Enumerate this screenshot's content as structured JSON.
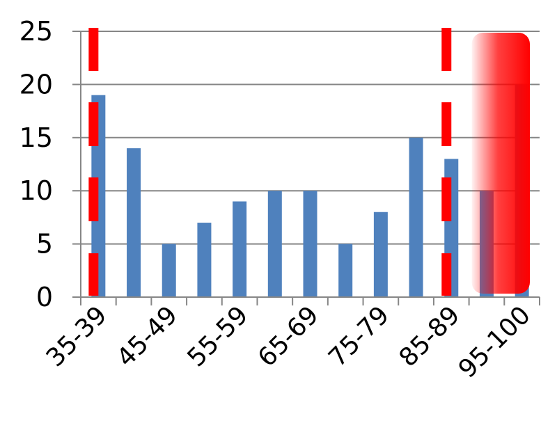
{
  "chart_data": {
    "type": "bar",
    "title": "",
    "xlabel": "",
    "ylabel": "",
    "ylim": [
      0,
      25
    ],
    "yticks": [
      0,
      5,
      10,
      15,
      20,
      25
    ],
    "grid": true,
    "categories": [
      "35-39",
      "40-44",
      "45-49",
      "50-54",
      "55-59",
      "60-64",
      "65-69",
      "70-74",
      "75-79",
      "80-84",
      "85-89",
      "90-94",
      "95-100"
    ],
    "xtick_labels_shown": [
      "35-39",
      "45-49",
      "55-59",
      "65-69",
      "75-79",
      "85-89",
      "95-100"
    ],
    "values": [
      19,
      14,
      5,
      7,
      9,
      10,
      10,
      5,
      8,
      15,
      13,
      10,
      20
    ],
    "bar_color": "#4f81bd",
    "annotations": {
      "dashed_lines_color": "#ff0000",
      "dashed_lines_at_categories": [
        "35-39",
        "85-89"
      ],
      "highlight_color": "#ff0000",
      "highlight_categories": [
        "90-94",
        "95-100"
      ]
    }
  }
}
